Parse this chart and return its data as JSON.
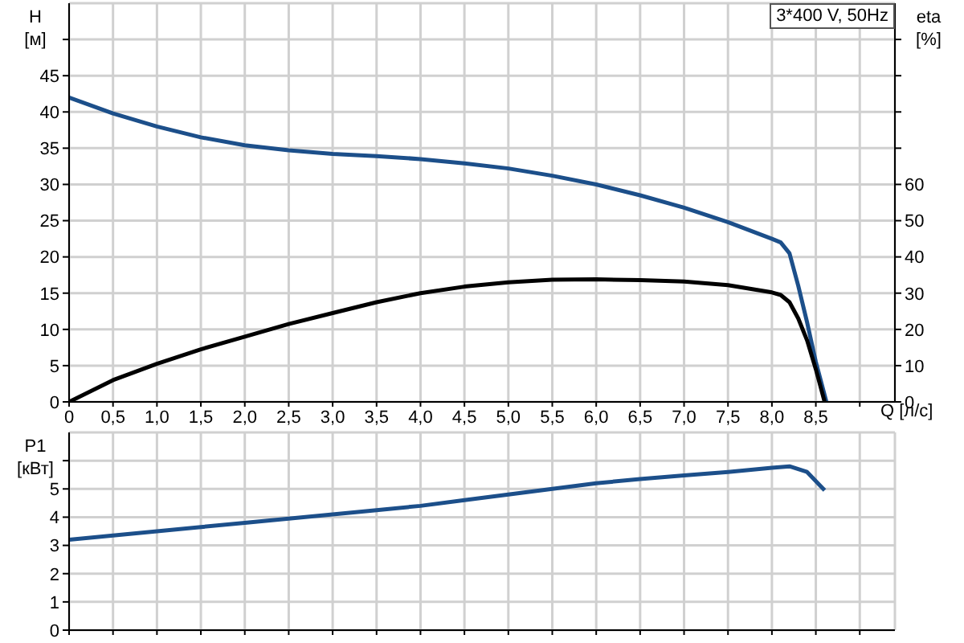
{
  "chart_data": [
    {
      "type": "line",
      "xlabel": "Q [л/с]",
      "ylabel": "H [м]",
      "y2label": "eta [%]",
      "annotations": [
        "3*400 V, 50Hz"
      ],
      "xlim": [
        0,
        9.4
      ],
      "xticks": [
        0,
        {
          "value": 0.5,
          "label": "0,5"
        },
        {
          "value": 1,
          "label": "1,0"
        },
        {
          "value": 1.5,
          "label": "1,5"
        },
        {
          "value": 2,
          "label": "2,0"
        },
        {
          "value": 2.5,
          "label": "2,5"
        },
        {
          "value": 3,
          "label": "3,0"
        },
        {
          "value": 3.5,
          "label": "3,5"
        },
        {
          "value": 4,
          "label": "4,0"
        },
        {
          "value": 4.5,
          "label": "4,5"
        },
        {
          "value": 5,
          "label": "5,0"
        },
        {
          "value": 5.5,
          "label": "5,5"
        },
        {
          "value": 6,
          "label": "6,0"
        },
        {
          "value": 6.5,
          "label": "6,5"
        },
        {
          "value": 7,
          "label": "7,0"
        },
        {
          "value": 7.5,
          "label": "7,5"
        },
        {
          "value": 8,
          "label": "8,0"
        },
        {
          "value": 8.5,
          "label": "8,5"
        },
        {
          "value": 9,
          "label": null
        }
      ],
      "ylim": [
        0,
        55
      ],
      "yticks": [
        0,
        5,
        10,
        15,
        20,
        25,
        30,
        35,
        40,
        45,
        {
          "value": 50,
          "label": null
        }
      ],
      "y2lim": [
        0,
        110
      ],
      "y2ticks": [
        0,
        10,
        20,
        30,
        40,
        50,
        60,
        {
          "value": 70,
          "label": null
        },
        {
          "value": 80,
          "label": null
        },
        {
          "value": 90,
          "label": null
        },
        {
          "value": 100,
          "label": null
        }
      ],
      "grid": true,
      "marker": "none",
      "line_style": "solid",
      "series": [
        {
          "color": "#1c4f8a",
          "x": [
            0,
            0.5,
            1,
            1.5,
            2,
            2.5,
            3,
            3.5,
            4,
            4.5,
            5,
            5.5,
            6,
            6.5,
            7,
            7.5,
            8,
            8.1,
            8.2,
            8.3,
            8.4,
            8.5,
            8.62
          ],
          "values": [
            42,
            39.8,
            38,
            36.5,
            35.4,
            34.7,
            34.2,
            33.9,
            33.5,
            32.9,
            32.2,
            31.2,
            30,
            28.5,
            26.8,
            24.8,
            22.5,
            22,
            20.5,
            16,
            11,
            5.5,
            0
          ]
        },
        {
          "color": "#000000",
          "axis": "y2",
          "x": [
            0,
            0.5,
            1,
            1.5,
            2,
            2.5,
            3,
            3.5,
            4,
            4.5,
            5,
            5.5,
            6,
            6.5,
            7,
            7.5,
            8,
            8.1,
            8.2,
            8.3,
            8.4,
            8.5,
            8.6
          ],
          "values": [
            0,
            6,
            10.5,
            14.5,
            18,
            21.5,
            24.5,
            27.5,
            30,
            31.8,
            33,
            33.7,
            33.8,
            33.6,
            33.2,
            32.2,
            30.2,
            29.5,
            27.5,
            23,
            17,
            9,
            0
          ]
        }
      ]
    },
    {
      "type": "line",
      "ylabel": "P1 [кВт]",
      "tick_labels": "y",
      "xlim": [
        0,
        9.4
      ],
      "xticks": [
        0,
        0.5,
        1,
        1.5,
        2,
        2.5,
        3,
        3.5,
        4,
        4.5,
        5,
        5.5,
        6,
        6.5,
        7,
        7.5,
        8,
        8.5,
        9
      ],
      "ylim": [
        0,
        7
      ],
      "yticks": [
        0,
        1,
        2,
        3,
        4,
        5,
        {
          "value": 6,
          "label": null
        }
      ],
      "grid": true,
      "marker": "none",
      "line_style": "solid",
      "series": [
        {
          "color": "#1c4f8a",
          "x": [
            0,
            0.5,
            1,
            1.5,
            2,
            2.5,
            3,
            3.5,
            4,
            4.5,
            5,
            5.5,
            6,
            6.5,
            7,
            7.5,
            8,
            8.2,
            8.4,
            8.6
          ],
          "values": [
            3.2,
            3.35,
            3.5,
            3.65,
            3.8,
            3.95,
            4.1,
            4.25,
            4.4,
            4.6,
            4.8,
            5,
            5.2,
            5.35,
            5.48,
            5.6,
            5.75,
            5.8,
            5.6,
            4.95
          ]
        }
      ]
    }
  ]
}
